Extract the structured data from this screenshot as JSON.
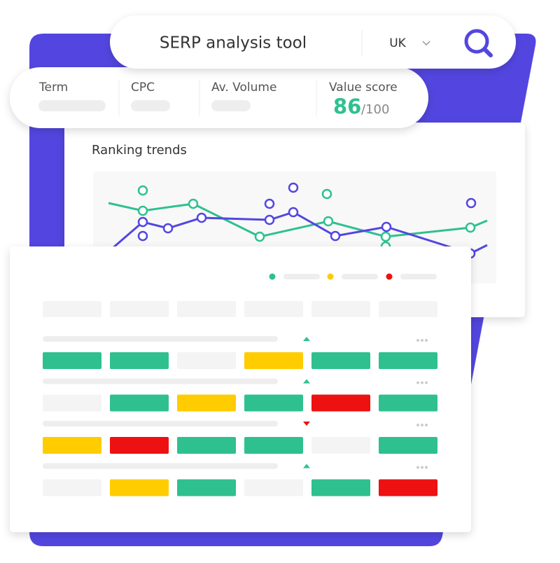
{
  "search": {
    "title": "SERP analysis tool",
    "region": "UK"
  },
  "metrics": {
    "labels": [
      "Term",
      "CPC",
      "Av. Volume",
      "Value score"
    ],
    "score": "86",
    "score_total": "/100"
  },
  "trends": {
    "title": "Ranking trends"
  }
}
